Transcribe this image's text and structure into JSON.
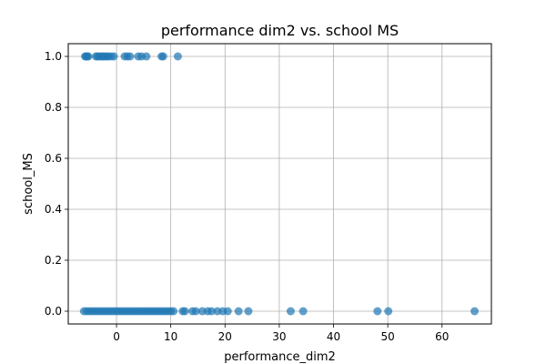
{
  "chart_data": {
    "type": "scatter",
    "title": "performance dim2 vs. school MS",
    "xlabel": "performance_dim2",
    "ylabel": "school_MS",
    "xlim": [
      -8.9,
      69.1
    ],
    "ylim": [
      -0.05,
      1.05
    ],
    "x_ticks": [
      0,
      10,
      20,
      30,
      40,
      50,
      60
    ],
    "y_ticks": [
      0.0,
      0.2,
      0.4,
      0.6,
      0.8,
      1.0
    ],
    "x_tick_labels": [
      "0",
      "10",
      "20",
      "30",
      "40",
      "50",
      "60"
    ],
    "y_tick_labels": [
      "0.0",
      "0.2",
      "0.4",
      "0.6",
      "0.8",
      "1.0"
    ],
    "grid": true,
    "point_color": "#1f77b4",
    "point_alpha": 0.7,
    "series": [
      {
        "name": "school_MS",
        "points": [
          {
            "x": -5.8,
            "y": 1
          },
          {
            "x": -5.6,
            "y": 1
          },
          {
            "x": -5.4,
            "y": 1
          },
          {
            "x": -5.2,
            "y": 1
          },
          {
            "x": -3.8,
            "y": 1
          },
          {
            "x": -3.5,
            "y": 1
          },
          {
            "x": -3.2,
            "y": 1
          },
          {
            "x": -2.8,
            "y": 1
          },
          {
            "x": -2.5,
            "y": 1
          },
          {
            "x": -2.2,
            "y": 1
          },
          {
            "x": -1.8,
            "y": 1
          },
          {
            "x": -1.5,
            "y": 1
          },
          {
            "x": -1.0,
            "y": 1
          },
          {
            "x": -0.5,
            "y": 1
          },
          {
            "x": 1.5,
            "y": 1
          },
          {
            "x": 2.0,
            "y": 1
          },
          {
            "x": 2.5,
            "y": 1
          },
          {
            "x": 4.0,
            "y": 1
          },
          {
            "x": 4.6,
            "y": 1
          },
          {
            "x": 5.5,
            "y": 1
          },
          {
            "x": 8.3,
            "y": 1
          },
          {
            "x": 8.6,
            "y": 1
          },
          {
            "x": 11.3,
            "y": 1
          },
          {
            "x": -6.0,
            "y": 0
          },
          {
            "x": -5.5,
            "y": 0
          },
          {
            "x": -5.0,
            "y": 0
          },
          {
            "x": -4.5,
            "y": 0
          },
          {
            "x": -4.0,
            "y": 0
          },
          {
            "x": -3.5,
            "y": 0
          },
          {
            "x": -3.0,
            "y": 0
          },
          {
            "x": -2.5,
            "y": 0
          },
          {
            "x": -2.0,
            "y": 0
          },
          {
            "x": -1.5,
            "y": 0
          },
          {
            "x": -1.0,
            "y": 0
          },
          {
            "x": -0.5,
            "y": 0
          },
          {
            "x": 0.0,
            "y": 0
          },
          {
            "x": 0.5,
            "y": 0
          },
          {
            "x": 1.0,
            "y": 0
          },
          {
            "x": 1.5,
            "y": 0
          },
          {
            "x": 2.0,
            "y": 0
          },
          {
            "x": 2.5,
            "y": 0
          },
          {
            "x": 3.0,
            "y": 0
          },
          {
            "x": 3.5,
            "y": 0
          },
          {
            "x": 4.0,
            "y": 0
          },
          {
            "x": 4.5,
            "y": 0
          },
          {
            "x": 5.0,
            "y": 0
          },
          {
            "x": 5.5,
            "y": 0
          },
          {
            "x": 6.0,
            "y": 0
          },
          {
            "x": 6.5,
            "y": 0
          },
          {
            "x": 7.0,
            "y": 0
          },
          {
            "x": 7.5,
            "y": 0
          },
          {
            "x": 8.0,
            "y": 0
          },
          {
            "x": 8.5,
            "y": 0
          },
          {
            "x": 9.0,
            "y": 0
          },
          {
            "x": 9.5,
            "y": 0
          },
          {
            "x": 10.0,
            "y": 0
          },
          {
            "x": 10.5,
            "y": 0
          },
          {
            "x": 12.2,
            "y": 0
          },
          {
            "x": 12.6,
            "y": 0
          },
          {
            "x": 14.0,
            "y": 0
          },
          {
            "x": 14.6,
            "y": 0
          },
          {
            "x": 15.8,
            "y": 0
          },
          {
            "x": 16.8,
            "y": 0
          },
          {
            "x": 17.5,
            "y": 0
          },
          {
            "x": 18.6,
            "y": 0
          },
          {
            "x": 19.6,
            "y": 0
          },
          {
            "x": 20.5,
            "y": 0
          },
          {
            "x": 22.5,
            "y": 0
          },
          {
            "x": 24.3,
            "y": 0
          },
          {
            "x": 32.1,
            "y": 0
          },
          {
            "x": 34.4,
            "y": 0
          },
          {
            "x": 48.1,
            "y": 0
          },
          {
            "x": 50.1,
            "y": 0
          },
          {
            "x": 66.0,
            "y": 0
          }
        ]
      }
    ]
  }
}
